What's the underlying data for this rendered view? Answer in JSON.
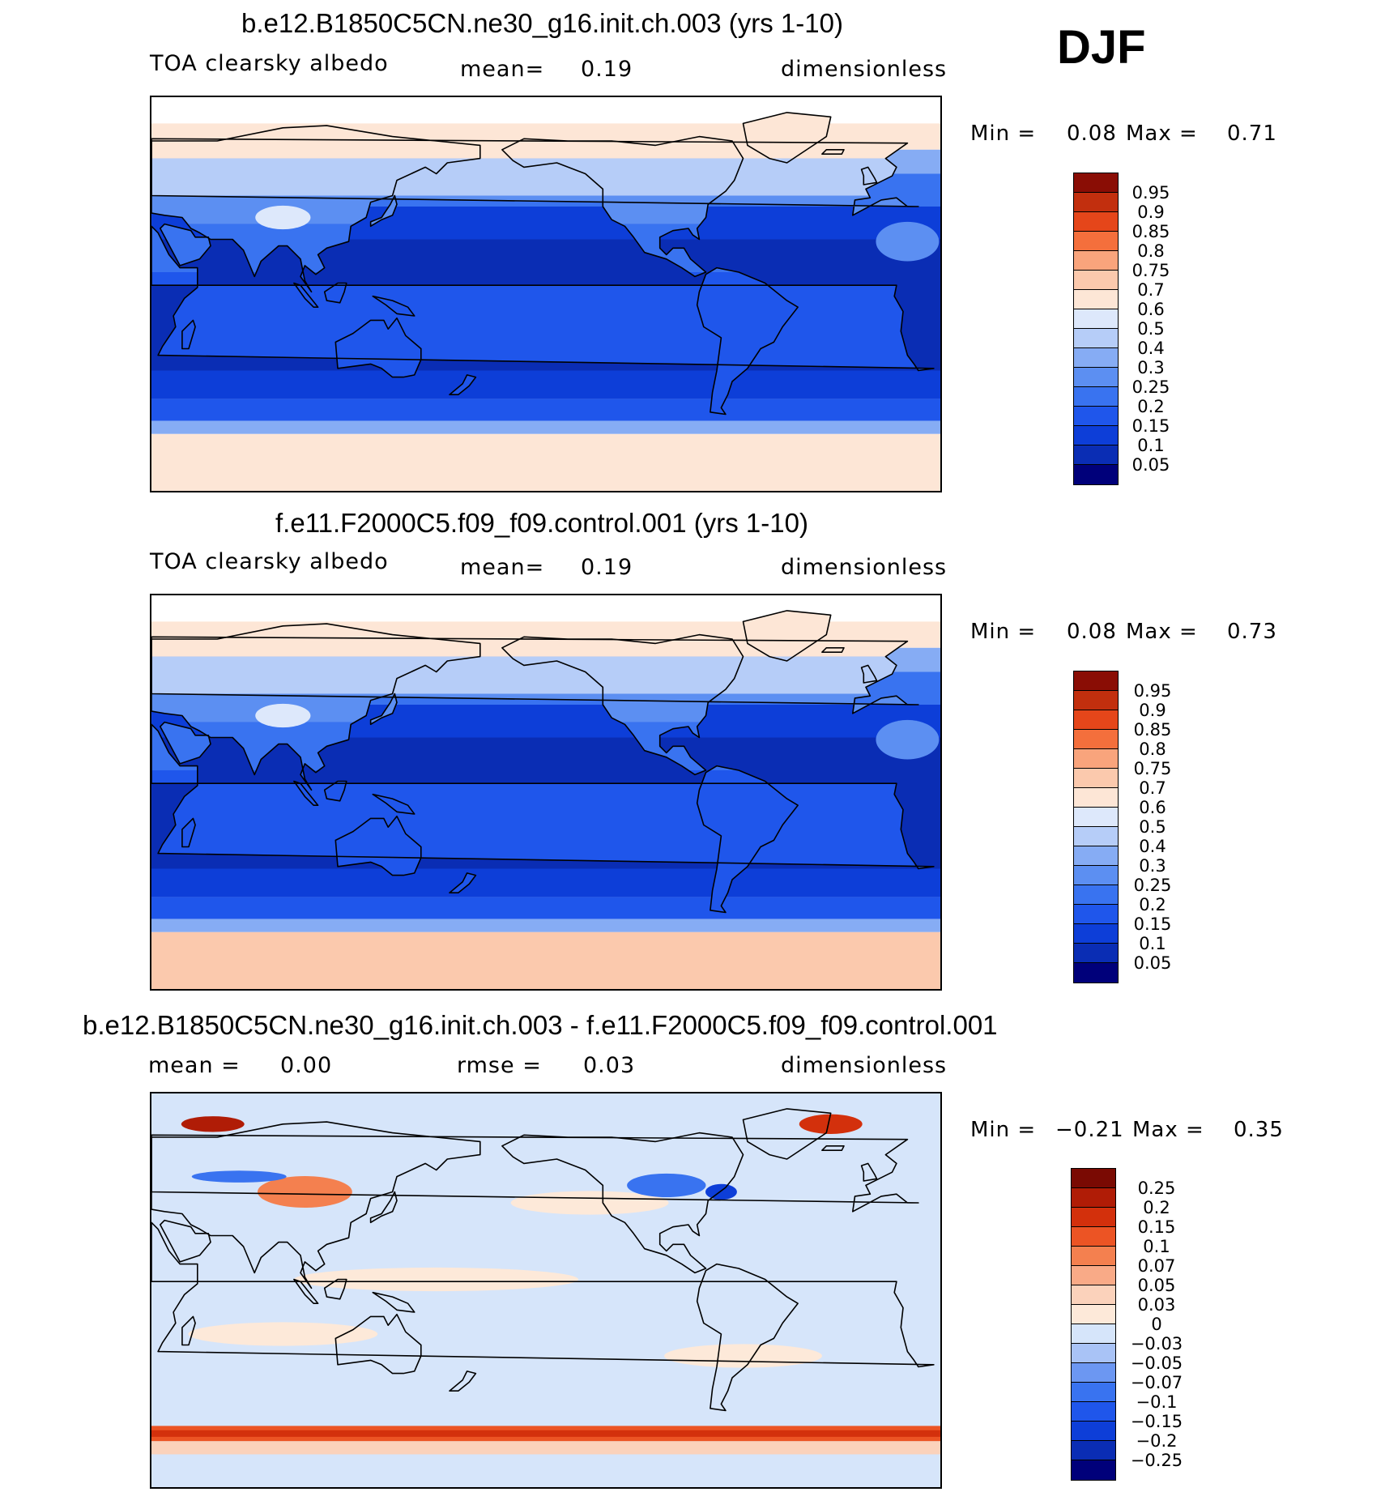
{
  "season": "DJF",
  "chart_data": [
    {
      "type": "heatmap",
      "title": "b.e12.B1850C5CN.ne30_g16.init.ch.003 (yrs 1-10)",
      "variable": "TOA clearsky albedo",
      "mean_label": "mean=",
      "mean": "0.19",
      "units": "dimensionless",
      "min_label": "Min =",
      "min": "0.08",
      "max_label": "Max =",
      "max": "0.71",
      "levels": [
        "0.05",
        "0.1",
        "0.15",
        "0.2",
        "0.25",
        "0.3",
        "0.4",
        "0.5",
        "0.6",
        "0.7",
        "0.75",
        "0.8",
        "0.85",
        "0.9",
        "0.95"
      ],
      "colors": [
        "#00007a",
        "#0a2db4",
        "#0d3ed8",
        "#1f56eb",
        "#3973f0",
        "#5c8ff2",
        "#86acf4",
        "#b6cdf8",
        "#dde8fb",
        "#fde6d6",
        "#fbc9ad",
        "#f9a47c",
        "#f46f3c",
        "#e5461a",
        "#c22f0e",
        "#8a0d05"
      ]
    },
    {
      "type": "heatmap",
      "title": "f.e11.F2000C5.f09_f09.control.001 (yrs 1-10)",
      "variable": "TOA clearsky albedo",
      "mean_label": "mean=",
      "mean": "0.19",
      "units": "dimensionless",
      "min_label": "Min =",
      "min": "0.08",
      "max_label": "Max =",
      "max": "0.73",
      "levels": [
        "0.05",
        "0.1",
        "0.15",
        "0.2",
        "0.25",
        "0.3",
        "0.4",
        "0.5",
        "0.6",
        "0.7",
        "0.75",
        "0.8",
        "0.85",
        "0.9",
        "0.95"
      ],
      "colors": [
        "#00007a",
        "#0a2db4",
        "#0d3ed8",
        "#1f56eb",
        "#3973f0",
        "#5c8ff2",
        "#86acf4",
        "#b6cdf8",
        "#dde8fb",
        "#fde6d6",
        "#fbc9ad",
        "#f9a47c",
        "#f46f3c",
        "#e5461a",
        "#c22f0e",
        "#8a0d05"
      ]
    },
    {
      "type": "heatmap",
      "title": "b.e12.B1850C5CN.ne30_g16.init.ch.003 - f.e11.F2000C5.f09_f09.control.001",
      "mean_label": "mean =",
      "mean": "0.00",
      "rmse_label": "rmse =",
      "rmse": "0.03",
      "units": "dimensionless",
      "min_label": "Min =",
      "min": "−0.21",
      "max_label": "Max =",
      "max": "0.35",
      "levels": [
        "−0.25",
        "−0.2",
        "−0.15",
        "−0.1",
        "−0.07",
        "−0.05",
        "−0.03",
        "0",
        "0.03",
        "0.05",
        "0.07",
        "0.1",
        "0.15",
        "0.2",
        "0.25"
      ],
      "colors": [
        "#00007a",
        "#0a2db4",
        "#0d3ed8",
        "#1f56eb",
        "#3973f0",
        "#6c97f2",
        "#a9c3f6",
        "#d6e5fa",
        "#fde9d9",
        "#fbd2bb",
        "#f9aa87",
        "#f4804f",
        "#ec5424",
        "#d3300c",
        "#b01c06",
        "#7a0a03"
      ]
    }
  ]
}
